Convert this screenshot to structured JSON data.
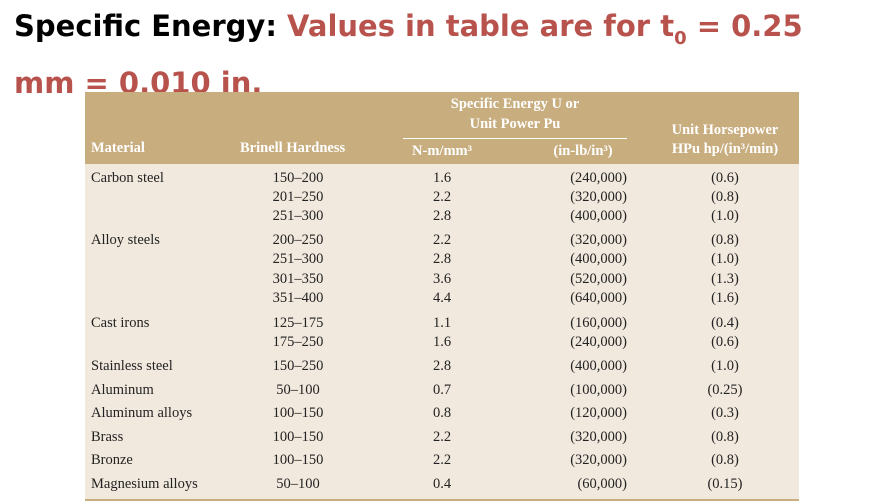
{
  "title": {
    "prefix": "Specific Energy: ",
    "accent_before_sub": "Values in table are for t",
    "subscript": "0",
    "accent_after_sub": " = 0.25 mm = 0.010 in."
  },
  "table": {
    "headers": {
      "material": "Material",
      "brinell": "Brinell Hardness",
      "group_line1": "Specific Energy U or",
      "group_line2": "Unit Power Pu",
      "nm": "N-m/mm³",
      "inlb": "(in-lb/in³)",
      "hp_line1": "Unit Horsepower",
      "hp_line2": "HPu hp/(in³/min)"
    },
    "rows": [
      {
        "material": "Carbon steel",
        "brinell": "150–200",
        "nm": "1.6",
        "inlb": "(240,000)",
        "hp": "(0.6)"
      },
      {
        "material": "",
        "brinell": "201–250",
        "nm": "2.2",
        "inlb": "(320,000)",
        "hp": "(0.8)"
      },
      {
        "material": "",
        "brinell": "251–300",
        "nm": "2.8",
        "inlb": "(400,000)",
        "hp": "(1.0)"
      },
      {
        "material": "Alloy steels",
        "brinell": "200–250",
        "nm": "2.2",
        "inlb": "(320,000)",
        "hp": "(0.8)"
      },
      {
        "material": "",
        "brinell": "251–300",
        "nm": "2.8",
        "inlb": "(400,000)",
        "hp": "(1.0)"
      },
      {
        "material": "",
        "brinell": "301–350",
        "nm": "3.6",
        "inlb": "(520,000)",
        "hp": "(1.3)"
      },
      {
        "material": "",
        "brinell": "351–400",
        "nm": "4.4",
        "inlb": "(640,000)",
        "hp": "(1.6)"
      },
      {
        "material": "Cast irons",
        "brinell": "125–175",
        "nm": "1.1",
        "inlb": "(160,000)",
        "hp": "(0.4)"
      },
      {
        "material": "",
        "brinell": "175–250",
        "nm": "1.6",
        "inlb": "(240,000)",
        "hp": "(0.6)"
      },
      {
        "material": "Stainless steel",
        "brinell": "150–250",
        "nm": "2.8",
        "inlb": "(400,000)",
        "hp": "(1.0)"
      },
      {
        "material": "Aluminum",
        "brinell": "50–100",
        "nm": "0.7",
        "inlb": "(100,000)",
        "hp": "(0.25)"
      },
      {
        "material": "Aluminum alloys",
        "brinell": "100–150",
        "nm": "0.8",
        "inlb": "(120,000)",
        "hp": "(0.3)"
      },
      {
        "material": "Brass",
        "brinell": "100–150",
        "nm": "2.2",
        "inlb": "(320,000)",
        "hp": "(0.8)"
      },
      {
        "material": "Bronze",
        "brinell": "100–150",
        "nm": "2.2",
        "inlb": "(320,000)",
        "hp": "(0.8)"
      },
      {
        "material": "Magnesium alloys",
        "brinell": "50–100",
        "nm": "0.4",
        "inlb": "(60,000)",
        "hp": "(0.15)"
      }
    ]
  },
  "colors": {
    "accent": "#b8524d",
    "header_bg": "#c8ad7f",
    "table_bg": "#f2e9de"
  }
}
